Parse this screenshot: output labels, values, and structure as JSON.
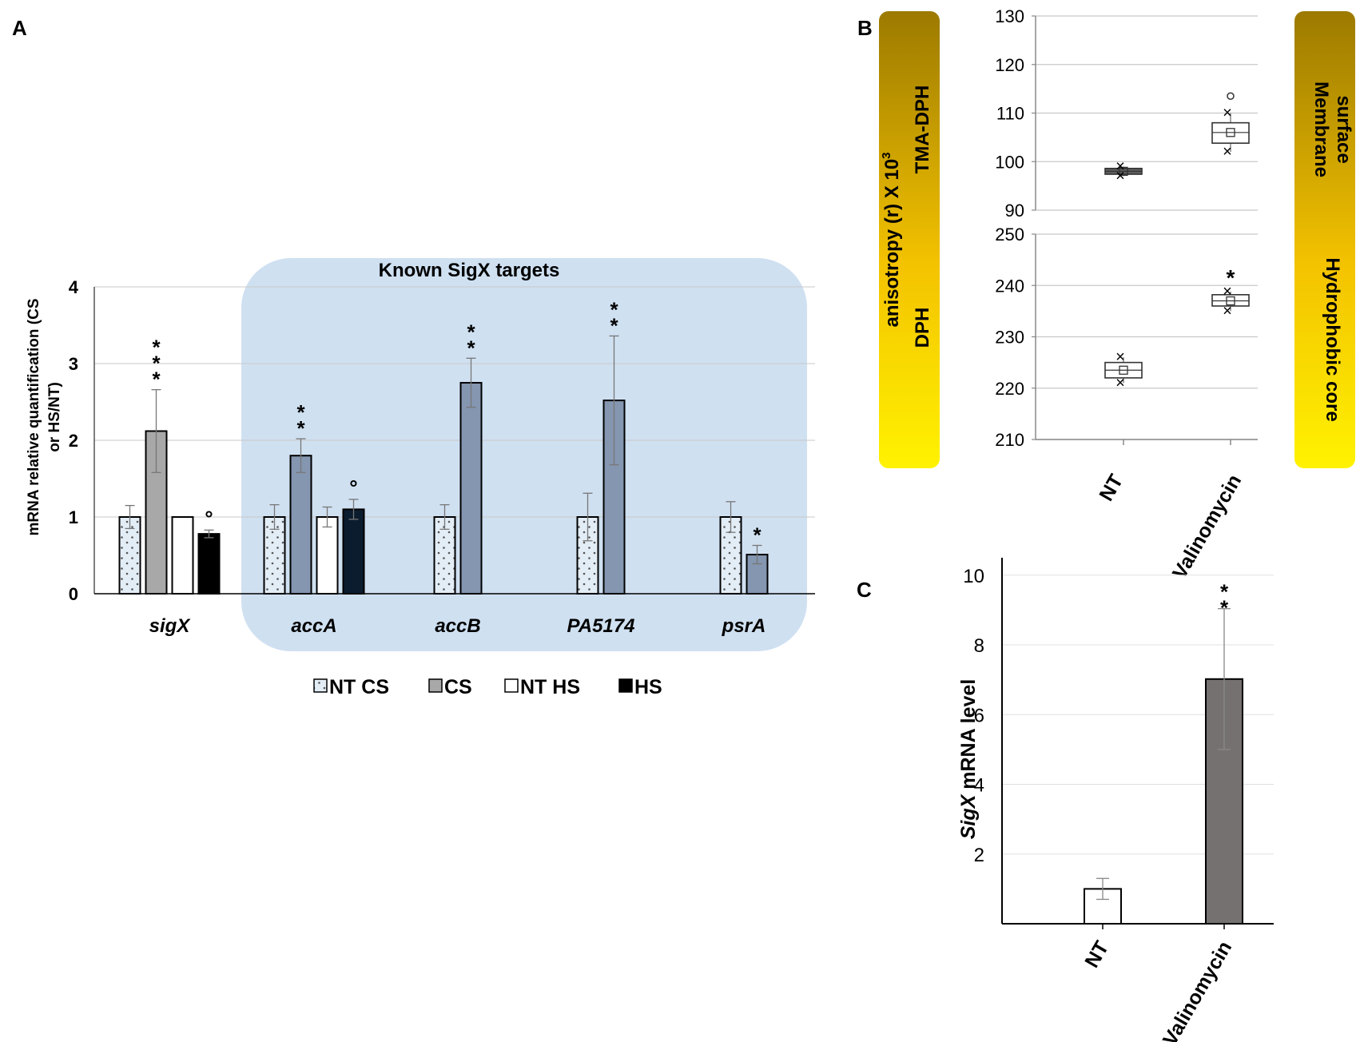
{
  "panel_labels": {
    "a": "A",
    "b": "B",
    "c": "C"
  },
  "colors": {
    "nt_cs_fill": "#e3edf6",
    "cs_fill": "#a8a8a8",
    "cs_fill_dark": "#8496b0",
    "nt_hs_fill": "#ffffff",
    "hs_fill": "#000000",
    "hs_fill_dark": "#0b1c2e",
    "highlight_box": "#cfe0f1",
    "grid": "#c8c8c8",
    "banner_top": "#9c7a00",
    "banner_bottom": "#fff200",
    "valinomycin_bar": "#767171"
  },
  "chart_data": [
    {
      "id": "A",
      "type": "bar",
      "title": "",
      "ylabel": "mRNA relative quantification (CS or HS/NT)",
      "ylabel_lines": [
        "mRNA relative quantification (CS",
        "or HS/NT)"
      ],
      "ylim": [
        0,
        4
      ],
      "yticks": [
        "0",
        "1",
        "2",
        "3",
        "4"
      ],
      "categories": [
        "sigX",
        "accA",
        "accB",
        "PA5174",
        "psrA"
      ],
      "highlight_label": "Known SigX targets",
      "legend": [
        "NT CS",
        "CS",
        "NT HS",
        "HS"
      ],
      "series": [
        {
          "name": "NT CS",
          "values": [
            1,
            1,
            1,
            1,
            1
          ],
          "errors": [
            0.15,
            0.16,
            0.16,
            0.31,
            0.2
          ]
        },
        {
          "name": "CS",
          "values": [
            2.12,
            1.8,
            2.75,
            2.52,
            0.51
          ],
          "errors": [
            0.54,
            0.22,
            0.32,
            0.84,
            0.12
          ]
        },
        {
          "name": "NT HS",
          "values": [
            1,
            1,
            null,
            null,
            null
          ],
          "errors": [
            0,
            0.13,
            null,
            null,
            null
          ]
        },
        {
          "name": "HS",
          "values": [
            0.78,
            1.1,
            null,
            null,
            null
          ],
          "errors": [
            0.05,
            0.13,
            null,
            null,
            null
          ]
        }
      ],
      "annotations": [
        {
          "category": "sigX",
          "series": "CS",
          "text": "***"
        },
        {
          "category": "sigX",
          "series": "HS",
          "text": "°"
        },
        {
          "category": "accA",
          "series": "CS",
          "text": "**"
        },
        {
          "category": "accA",
          "series": "HS",
          "text": "°"
        },
        {
          "category": "accB",
          "series": "CS",
          "text": "**"
        },
        {
          "category": "PA5174",
          "series": "CS",
          "text": "**"
        },
        {
          "category": "psrA",
          "series": "CS",
          "text": "*"
        }
      ]
    },
    {
      "id": "B-top",
      "type": "box",
      "ylim": [
        90,
        130
      ],
      "yticks": [
        "90",
        "100",
        "110",
        "120",
        "130"
      ],
      "categories": [
        "NT",
        "Valinomycin"
      ],
      "boxes": [
        {
          "category": "NT",
          "min": 97,
          "q1": 97.4,
          "median": 98,
          "mean": 98,
          "q3": 98.6,
          "max": 99,
          "outlier": null
        },
        {
          "category": "Valinomycin",
          "min": 102,
          "q1": 103.8,
          "median": 106,
          "mean": 106,
          "q3": 108,
          "max": 110,
          "outlier": 113.5
        }
      ],
      "left_banner": "TMA-DPH",
      "right_banner": [
        "Membrane",
        "surface"
      ]
    },
    {
      "id": "B-bottom",
      "type": "box",
      "ylim": [
        210,
        250
      ],
      "yticks": [
        "210",
        "220",
        "230",
        "240",
        "250"
      ],
      "categories": [
        "NT",
        "Valinomycin"
      ],
      "boxes": [
        {
          "category": "NT",
          "min": 221,
          "q1": 222,
          "median": 223.5,
          "mean": 223.5,
          "q3": 225,
          "max": 226,
          "outlier": null
        },
        {
          "category": "Valinomycin",
          "min": 235,
          "q1": 236,
          "median": 237,
          "mean": 237,
          "q3": 238.2,
          "max": 238.8,
          "outlier": null
        }
      ],
      "annotations": [
        {
          "category": "Valinomycin",
          "text": "*"
        }
      ],
      "left_banner": "DPH",
      "right_banner": [
        "Hydrophobic core"
      ]
    },
    {
      "id": "B-shared",
      "ylabel": "anisotropy (r) X 10",
      "ylabel_superscript": "3",
      "categories": [
        "NT",
        "Valinomycin"
      ]
    },
    {
      "id": "C",
      "type": "bar",
      "ylabel_italic": "SigX",
      "ylabel_rest": " mRNA level",
      "ylim": [
        0,
        10.5
      ],
      "yticks": [
        "2",
        "4",
        "6",
        "8",
        "10"
      ],
      "categories": [
        "NT",
        "Valinomycin"
      ],
      "values": [
        1,
        7.02
      ],
      "errors": [
        0.3,
        2.02
      ],
      "annotations": [
        {
          "category": "Valinomycin",
          "text": "**"
        }
      ]
    }
  ]
}
